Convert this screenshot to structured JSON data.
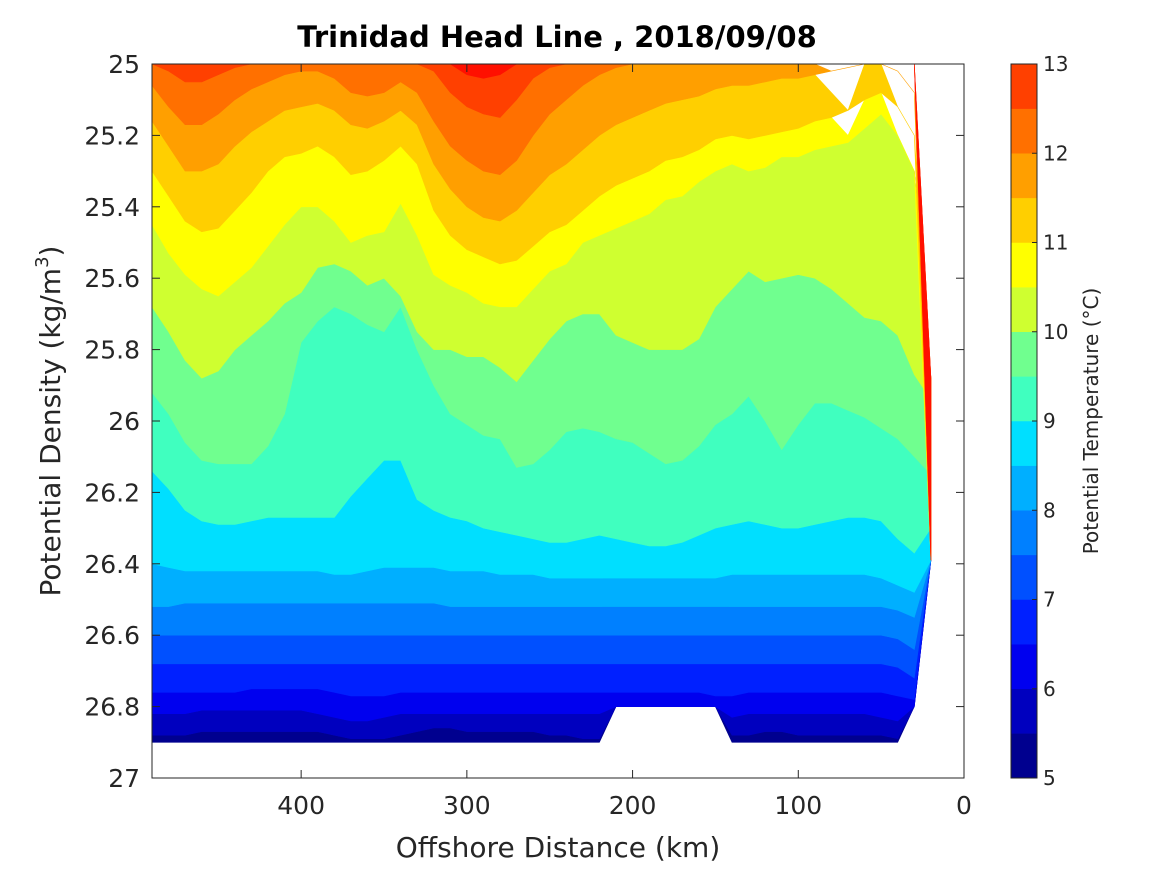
{
  "chart_data": {
    "type": "heatmap",
    "title": "Trinidad Head Line , 2018/09/08",
    "xlabel": "Offshore Distance (km)",
    "ylabel_main": "Potential Density (kg/m",
    "ylabel_sup": "3",
    "ylabel_end": ")",
    "colorbar_label": "Potential Temperature (°C)",
    "x_reversed": true,
    "xlim": [
      0,
      490
    ],
    "ylim": [
      25,
      27
    ],
    "y_reversed": true,
    "xticks": [
      400,
      300,
      200,
      100,
      0
    ],
    "xtick_labels": [
      "400",
      "300",
      "200",
      "100",
      "0"
    ],
    "yticks": [
      25,
      25.2,
      25.4,
      25.6,
      25.8,
      26,
      26.2,
      26.4,
      26.6,
      26.8,
      27
    ],
    "ytick_labels": [
      "25",
      "25.2",
      "25.4",
      "25.6",
      "25.8",
      "26",
      "26.2",
      "26.4",
      "26.6",
      "26.8",
      "27"
    ],
    "colorbar_ticks": [
      5,
      6,
      7,
      8,
      9,
      10,
      11,
      12,
      13
    ],
    "colorbar_tick_labels": [
      "5",
      "6",
      "7",
      "8",
      "9",
      "10",
      "11",
      "12",
      "13"
    ],
    "levels": [
      5,
      5.5,
      6,
      6.5,
      7,
      7.5,
      8,
      8.5,
      9,
      9.5,
      10,
      10.5,
      11,
      11.5,
      12,
      12.5,
      13
    ],
    "level_colors": [
      "#00008f",
      "#0000bf",
      "#0000ef",
      "#0020ff",
      "#0050ff",
      "#0080ff",
      "#00afff",
      "#00dfff",
      "#0fffef",
      "#40ffbf",
      "#70ff8f",
      "#9fff60",
      "#cfff30",
      "#ffff00",
      "#ffcf00",
      "#ff9f00",
      "#ff7000",
      "#ff4000",
      "#ff1000",
      "#df0000",
      "#af0000"
    ],
    "band_color_index": [
      0,
      1,
      2,
      3,
      4,
      6,
      7,
      9,
      10,
      12,
      13,
      14,
      15,
      16,
      17,
      18
    ],
    "colorbar_colors": [
      "#00008f",
      "#0000bf",
      "#0000ef",
      "#0020ff",
      "#0050ff",
      "#0080ff",
      "#00afff",
      "#00dfff",
      "#40ffbf",
      "#70ff8f",
      "#cfff30",
      "#ffff00",
      "#ffcf00",
      "#ff9f00",
      "#ff7000",
      "#ff4000",
      "#ff1000",
      "#df0000"
    ],
    "cb_band_values": [
      5,
      5.5,
      6,
      6.5,
      7,
      7.5,
      8,
      8.5,
      9,
      9.5,
      10,
      10.5,
      11,
      11.5,
      12,
      12.5,
      13
    ],
    "distance_km": [
      490,
      480,
      470,
      460,
      450,
      440,
      430,
      420,
      410,
      400,
      390,
      380,
      370,
      360,
      350,
      340,
      330,
      320,
      310,
      300,
      290,
      280,
      270,
      260,
      250,
      240,
      230,
      220,
      210,
      200,
      190,
      180,
      170,
      160,
      150,
      140,
      130,
      120,
      110,
      100,
      90,
      80,
      70,
      60,
      50,
      40,
      30,
      20
    ],
    "isotherms": [
      {
        "temp": 5.5,
        "density": [
          26.88,
          26.88,
          26.88,
          26.87,
          26.87,
          26.87,
          26.87,
          26.87,
          26.87,
          26.87,
          26.87,
          26.88,
          26.89,
          26.89,
          26.89,
          26.88,
          26.87,
          26.86,
          26.86,
          26.87,
          26.87,
          26.87,
          26.87,
          26.87,
          26.88,
          26.88,
          26.89,
          26.89,
          null,
          null,
          null,
          null,
          null,
          null,
          null,
          26.88,
          26.88,
          26.87,
          26.87,
          26.88,
          26.88,
          26.88,
          26.88,
          26.88,
          26.88,
          26.89,
          null,
          null
        ]
      },
      {
        "temp": 6.0,
        "density": [
          26.82,
          26.82,
          26.82,
          26.81,
          26.81,
          26.81,
          26.81,
          26.81,
          26.81,
          26.81,
          26.82,
          26.83,
          26.84,
          26.84,
          26.83,
          26.82,
          26.82,
          26.82,
          26.82,
          26.82,
          26.82,
          26.82,
          26.82,
          26.82,
          26.82,
          26.82,
          26.82,
          26.82,
          26.8,
          26.8,
          26.8,
          26.8,
          26.8,
          26.8,
          26.8,
          26.83,
          26.82,
          26.82,
          26.82,
          26.82,
          26.82,
          26.82,
          26.82,
          26.82,
          26.83,
          26.84,
          26.8,
          null
        ]
      },
      {
        "temp": 6.5,
        "density": [
          26.76,
          26.76,
          26.76,
          26.76,
          26.76,
          26.76,
          26.75,
          26.75,
          26.75,
          26.75,
          26.75,
          26.76,
          26.77,
          26.77,
          26.77,
          26.76,
          26.76,
          26.76,
          26.76,
          26.76,
          26.76,
          26.76,
          26.76,
          26.76,
          26.76,
          26.76,
          26.76,
          26.76,
          26.76,
          26.76,
          26.76,
          26.76,
          26.76,
          26.76,
          26.77,
          26.77,
          26.76,
          26.76,
          26.76,
          26.76,
          26.76,
          26.76,
          26.76,
          26.76,
          26.76,
          26.77,
          26.78,
          null
        ]
      },
      {
        "temp": 7.0,
        "density": [
          26.68,
          26.68,
          26.68,
          26.68,
          26.68,
          26.68,
          26.68,
          26.68,
          26.68,
          26.68,
          26.68,
          26.68,
          26.68,
          26.68,
          26.68,
          26.68,
          26.68,
          26.68,
          26.68,
          26.68,
          26.68,
          26.68,
          26.68,
          26.68,
          26.68,
          26.68,
          26.68,
          26.68,
          26.68,
          26.68,
          26.68,
          26.68,
          26.68,
          26.68,
          26.68,
          26.68,
          26.68,
          26.68,
          26.68,
          26.68,
          26.68,
          26.68,
          26.68,
          26.68,
          26.68,
          26.69,
          26.72,
          null
        ]
      },
      {
        "temp": 7.5,
        "density": [
          26.6,
          26.6,
          26.6,
          26.6,
          26.6,
          26.6,
          26.6,
          26.6,
          26.6,
          26.6,
          26.6,
          26.6,
          26.6,
          26.6,
          26.6,
          26.6,
          26.6,
          26.6,
          26.6,
          26.6,
          26.6,
          26.6,
          26.6,
          26.6,
          26.6,
          26.6,
          26.6,
          26.6,
          26.6,
          26.6,
          26.6,
          26.6,
          26.6,
          26.6,
          26.6,
          26.6,
          26.6,
          26.6,
          26.6,
          26.6,
          26.6,
          26.6,
          26.6,
          26.6,
          26.6,
          26.61,
          26.64,
          null
        ]
      },
      {
        "temp": 8.0,
        "density": [
          26.52,
          26.52,
          26.51,
          26.51,
          26.51,
          26.51,
          26.51,
          26.51,
          26.51,
          26.51,
          26.51,
          26.51,
          26.51,
          26.51,
          26.51,
          26.51,
          26.51,
          26.51,
          26.52,
          26.52,
          26.52,
          26.52,
          26.52,
          26.52,
          26.52,
          26.52,
          26.52,
          26.52,
          26.52,
          26.52,
          26.52,
          26.52,
          26.52,
          26.52,
          26.52,
          26.52,
          26.52,
          26.52,
          26.52,
          26.52,
          26.52,
          26.52,
          26.52,
          26.52,
          26.52,
          26.53,
          26.55,
          null
        ]
      },
      {
        "temp": 8.5,
        "density": [
          26.4,
          26.41,
          26.42,
          26.42,
          26.42,
          26.42,
          26.42,
          26.42,
          26.42,
          26.42,
          26.42,
          26.43,
          26.43,
          26.42,
          26.41,
          26.41,
          26.41,
          26.41,
          26.42,
          26.42,
          26.42,
          26.43,
          26.43,
          26.43,
          26.44,
          26.44,
          26.44,
          26.44,
          26.44,
          26.44,
          26.44,
          26.44,
          26.44,
          26.44,
          26.44,
          26.43,
          26.43,
          26.43,
          26.43,
          26.43,
          26.43,
          26.43,
          26.43,
          26.43,
          26.44,
          26.46,
          26.48,
          26.39
        ]
      },
      {
        "temp": 9.0,
        "density": [
          26.14,
          26.19,
          26.25,
          26.28,
          26.29,
          26.29,
          26.28,
          26.27,
          26.27,
          26.27,
          26.27,
          26.27,
          26.21,
          26.16,
          26.11,
          26.11,
          26.22,
          26.25,
          26.27,
          26.28,
          26.3,
          26.31,
          26.32,
          26.33,
          26.34,
          26.34,
          26.33,
          26.32,
          26.33,
          26.34,
          26.35,
          26.35,
          26.34,
          26.32,
          26.3,
          26.29,
          26.28,
          26.29,
          26.3,
          26.3,
          26.29,
          26.28,
          26.27,
          26.27,
          26.28,
          26.33,
          26.37,
          26.3
        ]
      },
      {
        "temp": 9.5,
        "density": [
          25.92,
          25.98,
          26.06,
          26.11,
          26.12,
          26.12,
          26.12,
          26.07,
          25.98,
          25.78,
          25.72,
          25.68,
          25.7,
          25.73,
          25.75,
          25.68,
          25.8,
          25.9,
          25.98,
          26.01,
          26.04,
          26.05,
          26.13,
          26.12,
          26.08,
          26.03,
          26.02,
          26.03,
          26.05,
          26.06,
          26.09,
          26.12,
          26.11,
          26.07,
          26.01,
          25.98,
          25.93,
          26.0,
          26.08,
          26.01,
          25.95,
          25.95,
          25.97,
          25.99,
          26.02,
          26.05,
          26.1,
          26.15
        ]
      },
      {
        "temp": 10.0,
        "density": [
          25.68,
          25.75,
          25.83,
          25.88,
          25.86,
          25.8,
          25.76,
          25.72,
          25.67,
          25.64,
          25.57,
          25.56,
          25.58,
          25.62,
          25.6,
          25.65,
          25.75,
          25.8,
          25.8,
          25.82,
          25.82,
          25.85,
          25.89,
          25.83,
          25.77,
          25.72,
          25.7,
          25.7,
          25.76,
          25.78,
          25.8,
          25.8,
          25.8,
          25.77,
          25.68,
          25.63,
          25.58,
          25.61,
          25.6,
          25.59,
          25.6,
          25.63,
          25.67,
          25.71,
          25.72,
          25.76,
          25.87,
          25.94
        ]
      },
      {
        "temp": 10.5,
        "density": [
          25.45,
          25.53,
          25.59,
          25.63,
          25.65,
          25.61,
          25.57,
          25.51,
          25.45,
          25.4,
          25.4,
          25.44,
          25.5,
          25.48,
          25.47,
          25.39,
          25.48,
          25.59,
          25.62,
          25.64,
          25.67,
          25.68,
          25.68,
          25.63,
          25.58,
          25.56,
          25.5,
          25.48,
          25.46,
          25.44,
          25.42,
          25.38,
          25.37,
          25.33,
          25.3,
          25.28,
          25.3,
          25.29,
          25.26,
          25.26,
          25.24,
          25.23,
          25.22,
          25.18,
          25.14,
          25.2,
          25.3,
          null
        ]
      },
      {
        "temp": 11.0,
        "density": [
          25.3,
          25.37,
          25.44,
          25.47,
          25.46,
          25.41,
          25.36,
          25.3,
          25.26,
          25.25,
          25.23,
          25.26,
          25.31,
          25.3,
          25.27,
          25.23,
          25.28,
          25.41,
          25.48,
          25.52,
          25.54,
          25.56,
          25.55,
          25.51,
          25.47,
          25.45,
          25.41,
          25.37,
          25.34,
          25.32,
          25.3,
          25.27,
          25.26,
          25.24,
          25.21,
          25.2,
          25.21,
          25.2,
          25.19,
          25.18,
          25.16,
          25.15,
          25.13,
          25.1,
          25.08,
          25.12,
          25.2,
          null
        ]
      },
      {
        "temp": 11.5,
        "density": [
          25.16,
          25.23,
          25.3,
          25.3,
          25.28,
          25.23,
          25.19,
          25.16,
          25.13,
          25.12,
          25.11,
          25.13,
          25.17,
          25.18,
          25.16,
          25.13,
          25.17,
          25.28,
          25.35,
          25.4,
          25.43,
          25.44,
          25.41,
          25.36,
          25.31,
          25.28,
          25.24,
          25.2,
          25.17,
          25.15,
          25.13,
          25.11,
          25.1,
          25.09,
          25.07,
          25.06,
          25.06,
          25.05,
          25.04,
          25.04,
          25.03,
          25.02,
          25.01,
          25.0,
          25.0,
          25.02,
          25.08,
          null
        ]
      },
      {
        "temp": 12.0,
        "density": [
          25.06,
          25.12,
          25.17,
          25.17,
          25.14,
          25.1,
          25.07,
          25.05,
          25.03,
          25.02,
          25.02,
          25.04,
          25.08,
          25.09,
          25.08,
          25.05,
          25.08,
          25.16,
          25.23,
          25.27,
          25.3,
          25.31,
          25.27,
          25.2,
          25.14,
          25.1,
          25.06,
          25.03,
          25.01,
          25.0,
          25.0,
          25.0,
          25.0,
          25.0,
          25.0,
          25.0,
          25.0,
          25.0,
          25.0,
          25.0,
          25.0,
          25.0,
          25.0,
          25.0,
          25.0,
          25.0,
          25.0,
          null
        ]
      },
      {
        "temp": 12.5,
        "density": [
          25.0,
          25.02,
          25.05,
          25.05,
          25.03,
          25.01,
          25.0,
          25.0,
          25.0,
          25.0,
          25.0,
          25.0,
          25.0,
          25.0,
          25.0,
          25.0,
          25.0,
          25.02,
          25.08,
          25.12,
          25.14,
          25.15,
          25.1,
          25.04,
          25.01,
          25.0,
          25.0,
          25.0,
          25.0,
          25.0,
          25.0,
          25.0,
          25.0,
          25.0,
          25.0,
          25.0,
          25.0,
          25.0,
          25.0,
          25.0,
          25.0,
          25.0,
          25.0,
          25.0,
          25.0,
          25.0,
          25.0,
          null
        ]
      },
      {
        "temp": 13.0,
        "density": [
          25.0,
          25.0,
          25.0,
          25.0,
          25.0,
          25.0,
          25.0,
          25.0,
          25.0,
          25.0,
          25.0,
          25.0,
          25.0,
          25.0,
          25.0,
          25.0,
          25.0,
          25.0,
          25.0,
          25.03,
          25.04,
          25.03,
          25.0,
          25.0,
          25.0,
          25.0,
          25.0,
          25.0,
          25.0,
          25.0,
          25.0,
          25.0,
          25.0,
          25.0,
          25.0,
          25.0,
          25.0,
          25.0,
          25.0,
          25.0,
          25.0,
          25.0,
          25.0,
          25.0,
          25.0,
          25.0,
          25.0,
          null
        ]
      }
    ],
    "data_bottom_density": [
      26.9,
      26.9,
      26.9,
      26.9,
      26.9,
      26.9,
      26.9,
      26.9,
      26.9,
      26.9,
      26.9,
      26.9,
      26.9,
      26.9,
      26.9,
      26.9,
      26.9,
      26.9,
      26.9,
      26.9,
      26.9,
      26.9,
      26.9,
      26.9,
      26.9,
      26.9,
      26.9,
      26.9,
      26.8,
      26.8,
      26.8,
      26.8,
      26.8,
      26.8,
      26.8,
      26.9,
      26.9,
      26.9,
      26.9,
      26.9,
      26.9,
      26.9,
      26.9,
      26.9,
      26.9,
      26.9,
      26.8,
      26.39
    ],
    "data_top_density": [
      25.0,
      25.0,
      25.0,
      25.0,
      25.0,
      25.0,
      25.0,
      25.0,
      25.0,
      25.0,
      25.0,
      25.0,
      25.0,
      25.0,
      25.0,
      25.0,
      25.0,
      25.0,
      25.0,
      25.0,
      25.0,
      25.0,
      25.0,
      25.0,
      25.0,
      25.0,
      25.0,
      25.0,
      25.0,
      25.0,
      25.0,
      25.0,
      25.0,
      25.0,
      25.0,
      25.0,
      25.0,
      25.0,
      25.0,
      25.0,
      25.0,
      25.08,
      25.2,
      25.0,
      25.0,
      25.2,
      25.3,
      25.88
    ]
  }
}
